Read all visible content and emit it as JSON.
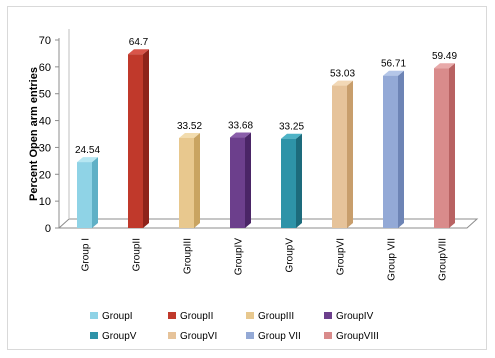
{
  "chart_data": {
    "type": "bar",
    "title": "",
    "xlabel": "",
    "ylabel": "Percent Open arm entries",
    "ylim": [
      0,
      70
    ],
    "yticks": [
      0,
      10,
      20,
      30,
      40,
      50,
      60,
      70
    ],
    "grid": false,
    "legend_position": "bottom",
    "categories": [
      "Group I",
      "GroupII",
      "GroupIII",
      "GroupIV",
      "GroupV",
      "GroupVI",
      "Group VII",
      "GroupVIII"
    ],
    "values": [
      24.54,
      64.7,
      33.52,
      33.68,
      33.25,
      53.03,
      56.71,
      59.49
    ],
    "data_labels": [
      "24.54",
      "64.7",
      "33.52",
      "33.68",
      "33.25",
      "53.03",
      "56.71",
      "59.49"
    ],
    "legend_labels": [
      "GroupI",
      "GroupII",
      "GroupIII",
      "GroupIV",
      "GroupV",
      "GroupVI",
      "Group VII",
      "GroupVIII"
    ],
    "colors": [
      "#8fd3e6",
      "#c0392b",
      "#e8c88e",
      "#6c3f8c",
      "#2e93a8",
      "#e6c39a",
      "#93a9d6",
      "#d98b8b"
    ],
    "side_colors": [
      "#5fb0c6",
      "#8e231a",
      "#c9a461",
      "#4a2566",
      "#1d6b7c",
      "#c89e6c",
      "#6d84b5",
      "#b86262"
    ],
    "top_colors": [
      "#b6e7f2",
      "#d9554a",
      "#f2dcae",
      "#8a5eaa",
      "#4eb3c6",
      "#f2d8b6",
      "#b4c6e8",
      "#e8aaaa"
    ]
  }
}
